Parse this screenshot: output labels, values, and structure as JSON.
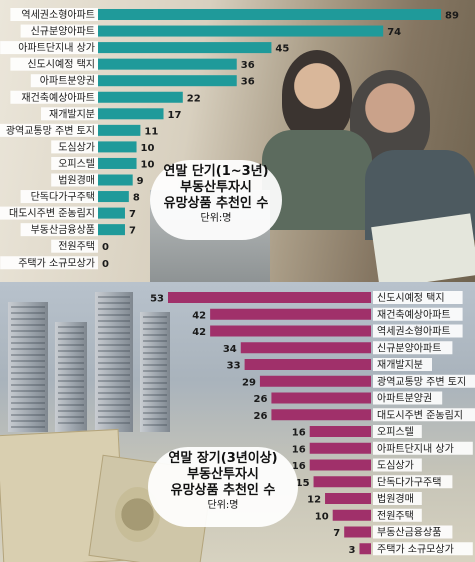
{
  "colors": {
    "top_bar": "#1f9a9a",
    "bottom_bar": "#a0306a"
  },
  "chart_data": [
    {
      "type": "bar",
      "orientation": "horizontal",
      "title_lines": [
        "연말 단기(1~3년)",
        "부동산투자시",
        "유망상품 추천인 수"
      ],
      "unit": "단위:명",
      "categories": [
        "역세권소형아파트",
        "신규분양아파트",
        "아파트단지내 상가",
        "신도시예정 택지",
        "아파트분양권",
        "재건축예상아파트",
        "재개발지분",
        "광역교통망 주변 토지",
        "도심상가",
        "오피스텔",
        "법원경매",
        "단독다가구주택",
        "대도시주변 준농림지",
        "부동산금융상품",
        "전원주택",
        "주택가 소규모상가"
      ],
      "values": [
        89,
        74,
        45,
        36,
        36,
        22,
        17,
        11,
        10,
        10,
        9,
        8,
        7,
        7,
        0,
        0
      ],
      "xlim": [
        0,
        89
      ]
    },
    {
      "type": "bar",
      "orientation": "horizontal",
      "title_lines": [
        "연말 장기(3년이상)",
        "부동산투자시",
        "유망상품 추천인 수"
      ],
      "unit": "단위:명",
      "categories": [
        "신도시예정 택지",
        "재건축예상아파트",
        "역세권소형아파트",
        "신규분양아파트",
        "재개발지분",
        "광역교통망 주변 토지",
        "아파트분양권",
        "대도시주변 준농림지",
        "오피스텔",
        "아파트단지내 상가",
        "도심상가",
        "단독다가구주택",
        "법원경매",
        "전원주택",
        "부동산금융상품",
        "주택가 소규모상가"
      ],
      "values": [
        53,
        42,
        42,
        34,
        33,
        29,
        26,
        26,
        16,
        16,
        16,
        15,
        12,
        10,
        7,
        3
      ],
      "xlim": [
        0,
        53
      ]
    }
  ]
}
